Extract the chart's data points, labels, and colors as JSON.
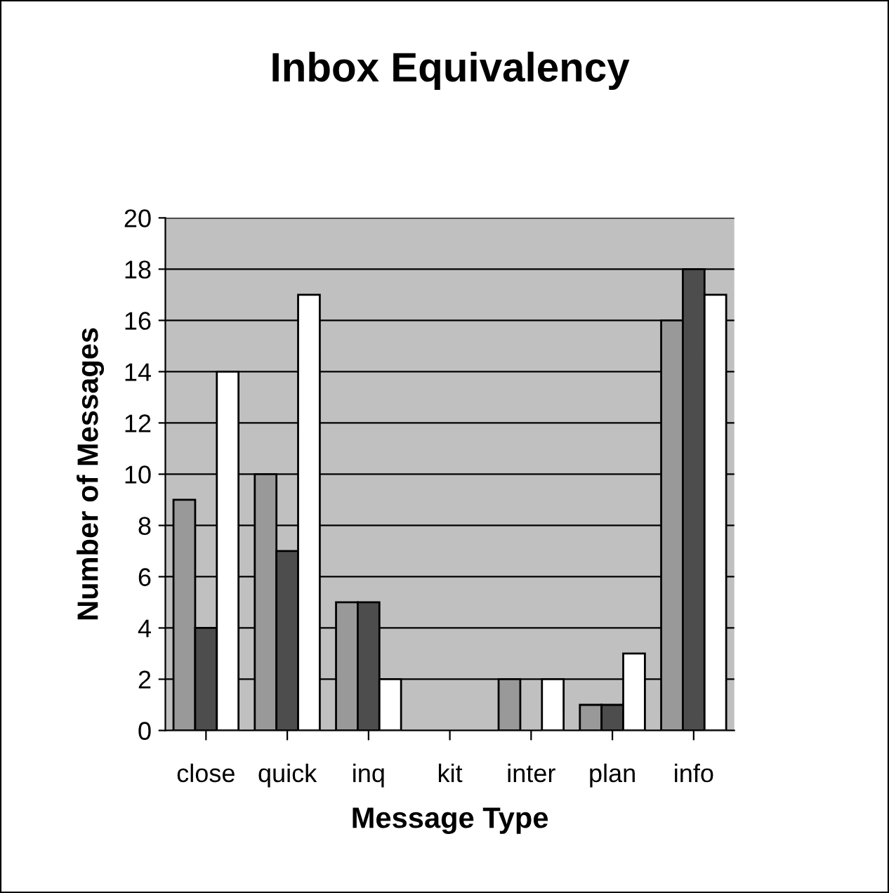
{
  "chart_data": {
    "type": "bar",
    "title": "Inbox Equivalency",
    "xlabel": "Message Type",
    "ylabel": "Number of Messages",
    "categories": [
      "close",
      "quick",
      "inq",
      "kit",
      "inter",
      "plan",
      "info"
    ],
    "series": [
      {
        "color": "#999999",
        "values": [
          9,
          10,
          5,
          0,
          2,
          1,
          16
        ]
      },
      {
        "color": "#4d4d4d",
        "values": [
          4,
          7,
          5,
          0,
          0,
          1,
          18
        ]
      },
      {
        "color": "#ffffff",
        "values": [
          14,
          17,
          2,
          0,
          2,
          3,
          17
        ]
      }
    ],
    "ylim": [
      0,
      20
    ],
    "yticks": [
      0,
      2,
      4,
      6,
      8,
      10,
      12,
      14,
      16,
      18,
      20
    ],
    "grid": "y"
  }
}
